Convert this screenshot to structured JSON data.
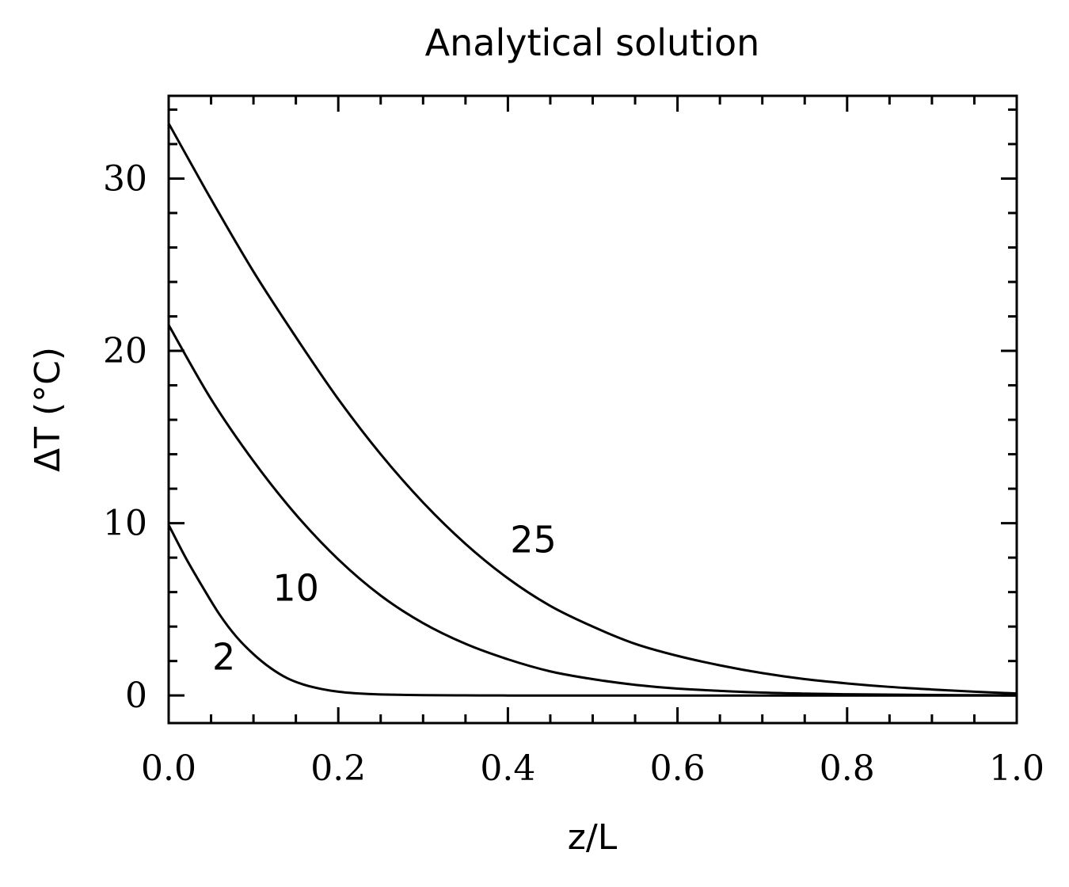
{
  "chart_data": {
    "type": "line",
    "title": "Analytical solution",
    "xlabel": "z/L",
    "ylabel": "ΔT (°C)",
    "xlim": [
      0.0,
      1.0
    ],
    "ylim": [
      -1.6,
      34.8
    ],
    "grid": false,
    "legend": "none",
    "xticks": [
      0.0,
      0.2,
      0.4,
      0.6,
      0.8,
      1.0
    ],
    "xtick_labels": [
      "0.0",
      "0.2",
      "0.4",
      "0.6",
      "0.8",
      "1.0"
    ],
    "yticks": [
      0,
      10,
      20,
      30
    ],
    "ytick_labels": [
      "0",
      "10",
      "20",
      "30"
    ],
    "series": [
      {
        "label": "2",
        "label_at": [
          0.065,
          1.5
        ],
        "x": [
          0.0,
          0.02,
          0.04,
          0.06,
          0.08,
          0.1,
          0.12,
          0.14,
          0.16,
          0.18,
          0.2,
          0.22,
          0.25,
          0.3,
          0.35,
          0.4,
          0.5,
          0.6,
          0.8,
          1.0
        ],
        "y": [
          9.9,
          8.0,
          6.3,
          4.7,
          3.4,
          2.4,
          1.6,
          1.0,
          0.62,
          0.38,
          0.22,
          0.13,
          0.06,
          0.02,
          0.006,
          0.0,
          0.0,
          0.0,
          0.0,
          0.0
        ]
      },
      {
        "label": "10",
        "label_at": [
          0.15,
          5.5
        ],
        "x": [
          0.0,
          0.05,
          0.1,
          0.15,
          0.2,
          0.25,
          0.3,
          0.35,
          0.4,
          0.45,
          0.5,
          0.55,
          0.6,
          0.7,
          0.8,
          0.9,
          1.0
        ],
        "y": [
          21.5,
          17.2,
          13.6,
          10.5,
          7.9,
          5.8,
          4.2,
          3.0,
          2.1,
          1.4,
          0.95,
          0.62,
          0.4,
          0.17,
          0.07,
          0.03,
          0.01
        ]
      },
      {
        "label": "25",
        "label_at": [
          0.43,
          8.3
        ],
        "x": [
          0.0,
          0.05,
          0.1,
          0.15,
          0.2,
          0.25,
          0.3,
          0.35,
          0.4,
          0.45,
          0.5,
          0.55,
          0.6,
          0.65,
          0.7,
          0.75,
          0.8,
          0.85,
          0.9,
          0.95,
          1.0
        ],
        "y": [
          33.2,
          28.8,
          24.6,
          20.8,
          17.2,
          14.0,
          11.2,
          8.8,
          6.8,
          5.2,
          4.0,
          3.0,
          2.3,
          1.75,
          1.3,
          0.95,
          0.7,
          0.5,
          0.35,
          0.22,
          0.12
        ]
      }
    ]
  }
}
